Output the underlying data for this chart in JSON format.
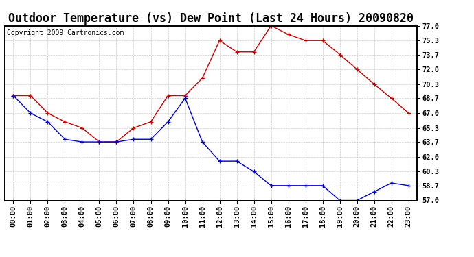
{
  "title": "Outdoor Temperature (vs) Dew Point (Last 24 Hours) 20090820",
  "copyright": "Copyright 2009 Cartronics.com",
  "hours": [
    "00:00",
    "01:00",
    "02:00",
    "03:00",
    "04:00",
    "05:00",
    "06:00",
    "07:00",
    "08:00",
    "09:00",
    "10:00",
    "11:00",
    "12:00",
    "13:00",
    "14:00",
    "15:00",
    "16:00",
    "17:00",
    "18:00",
    "19:00",
    "20:00",
    "21:00",
    "22:00",
    "23:00"
  ],
  "temp": [
    69.0,
    69.0,
    67.0,
    66.0,
    65.3,
    63.7,
    63.7,
    65.3,
    66.0,
    69.0,
    69.0,
    71.0,
    75.3,
    74.0,
    74.0,
    77.0,
    76.0,
    75.3,
    75.3,
    73.7,
    72.0,
    70.3,
    68.7,
    67.0
  ],
  "dew": [
    69.0,
    67.0,
    66.0,
    64.0,
    63.7,
    63.7,
    63.7,
    64.0,
    64.0,
    66.0,
    68.7,
    63.7,
    61.5,
    61.5,
    60.3,
    58.7,
    58.7,
    58.7,
    58.7,
    57.0,
    57.0,
    58.0,
    59.0,
    58.7
  ],
  "temp_color": "#cc0000",
  "dew_color": "#0000cc",
  "bg_color": "#ffffff",
  "plot_bg_color": "#ffffff",
  "grid_color": "#cccccc",
  "ylim_min": 57.0,
  "ylim_max": 77.0,
  "yticks": [
    57.0,
    58.7,
    60.3,
    62.0,
    63.7,
    65.3,
    67.0,
    68.7,
    70.3,
    72.0,
    73.7,
    75.3,
    77.0
  ],
  "title_fontsize": 12,
  "copyright_fontsize": 7,
  "tick_fontsize": 7.5
}
